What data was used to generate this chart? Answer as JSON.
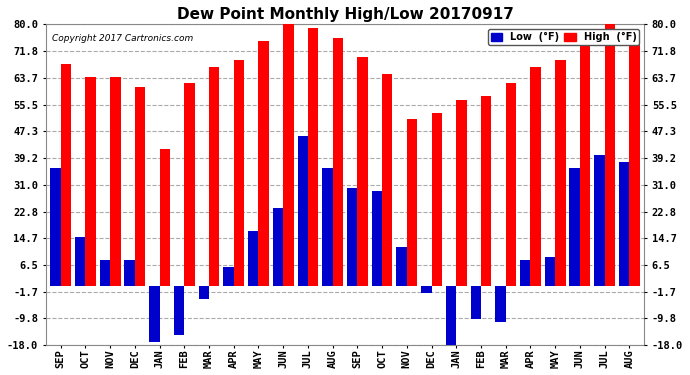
{
  "title": "Dew Point Monthly High/Low 20170917",
  "copyright": "Copyright 2017 Cartronics.com",
  "categories": [
    "SEP",
    "OCT",
    "NOV",
    "DEC",
    "JAN",
    "FEB",
    "MAR",
    "APR",
    "MAY",
    "JUN",
    "JUL",
    "AUG",
    "SEP",
    "OCT",
    "NOV",
    "DEC",
    "JAN",
    "FEB",
    "MAR",
    "APR",
    "MAY",
    "JUN",
    "JUL",
    "AUG"
  ],
  "high_values": [
    68,
    64,
    64,
    61,
    42,
    62,
    67,
    69,
    75,
    80,
    79,
    76,
    70,
    65,
    51,
    53,
    57,
    58,
    62,
    67,
    69,
    76,
    80,
    75
  ],
  "low_values": [
    36,
    15,
    8,
    8,
    -17,
    -15,
    -4,
    6,
    17,
    24,
    46,
    36,
    30,
    29,
    12,
    -2,
    -18,
    -10,
    -11,
    8,
    9,
    36,
    40,
    38
  ],
  "high_color": "#ff0000",
  "low_color": "#0000cc",
  "bg_color": "#ffffff",
  "plot_bg_color": "#ffffff",
  "grid_color": "#aaaaaa",
  "ylim": [
    -18.0,
    80.0
  ],
  "yticks": [
    -18.0,
    -9.8,
    -1.7,
    6.5,
    14.7,
    22.8,
    31.0,
    39.2,
    47.3,
    55.5,
    63.7,
    71.8,
    80.0
  ],
  "bar_width": 0.42,
  "title_fontsize": 11,
  "tick_fontsize": 7.5,
  "legend_low_label": "Low  (°F)",
  "legend_high_label": "High  (°F)"
}
